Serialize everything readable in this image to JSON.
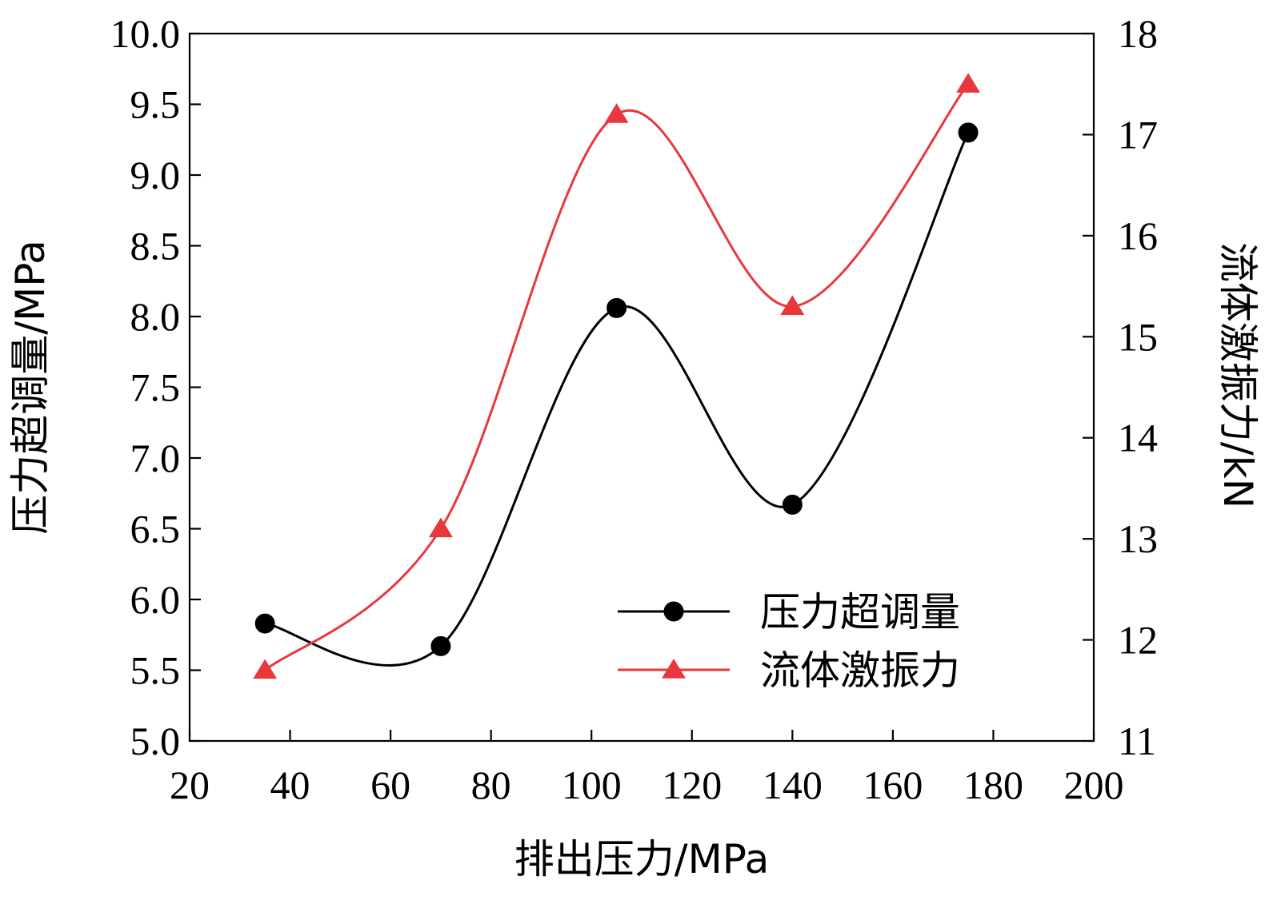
{
  "chart_data": {
    "type": "line",
    "xlabel": "排出压力/MPa",
    "ylabel_left": "压力超调量/MPa",
    "ylabel_right": "流体激振力/kN",
    "xlim": [
      20,
      200
    ],
    "xticks": [
      20,
      40,
      60,
      80,
      100,
      120,
      140,
      160,
      180,
      200
    ],
    "ylim_left": [
      5.0,
      10.0
    ],
    "yticks_left": [
      "5.0",
      "5.5",
      "6.0",
      "6.5",
      "7.0",
      "7.5",
      "8.0",
      "8.5",
      "9.0",
      "9.5",
      "10.0"
    ],
    "ylim_right": [
      11,
      18
    ],
    "yticks_right": [
      "11",
      "12",
      "13",
      "14",
      "15",
      "16",
      "17",
      "18"
    ],
    "x": [
      35,
      70,
      105,
      140,
      175
    ],
    "series": [
      {
        "name": "压力超调量",
        "axis": "left",
        "color": "#000000",
        "marker": "circle",
        "values": [
          5.83,
          5.67,
          8.06,
          6.67,
          9.3
        ]
      },
      {
        "name": "流体激振力",
        "axis": "right",
        "color": "#e8373d",
        "marker": "triangle",
        "values": [
          11.7,
          13.1,
          17.2,
          15.3,
          17.5
        ]
      }
    ],
    "legend": "bottom-right",
    "grid": false
  }
}
